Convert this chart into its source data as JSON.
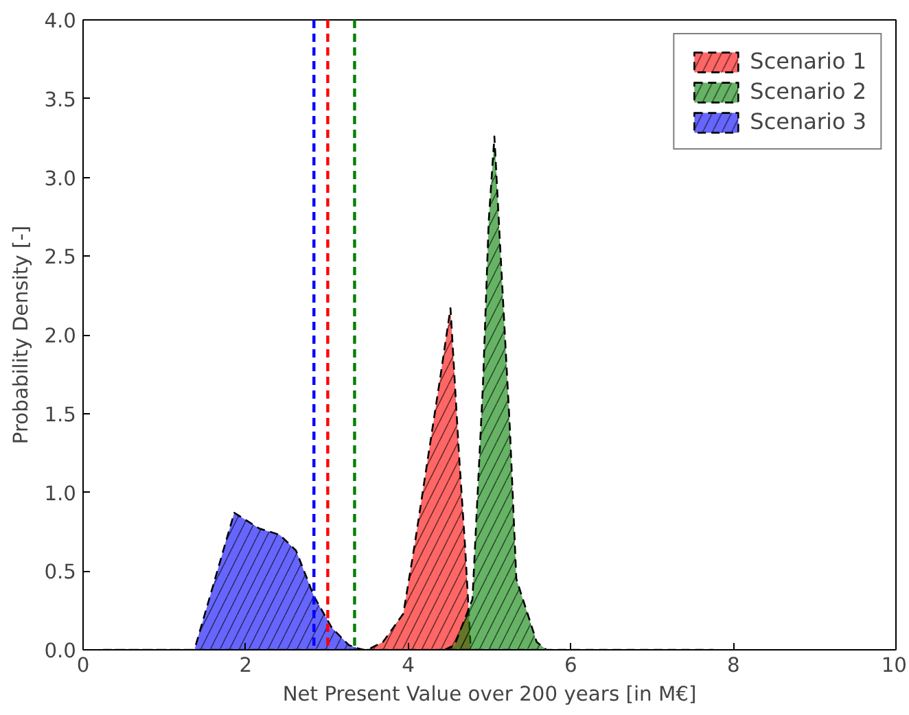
{
  "chart_data": {
    "type": "area",
    "xlabel": "Net Present Value over 200 years [in M€]",
    "ylabel": "Probability Density [-]",
    "xlim": [
      0,
      10
    ],
    "ylim": [
      0,
      4
    ],
    "xticks": [
      0,
      2,
      4,
      6,
      8,
      10
    ],
    "yticks": [
      {
        "value": 0,
        "label": "0.0"
      },
      {
        "value": 0.5,
        "label": "0.5"
      },
      {
        "value": 1,
        "label": "1.0"
      },
      {
        "value": 1.5,
        "label": "1.5"
      },
      {
        "value": 2,
        "label": "2.0"
      },
      {
        "value": 2.5,
        "label": "2.5"
      },
      {
        "value": 3,
        "label": "3.0"
      },
      {
        "value": 3.5,
        "label": "3.5"
      },
      {
        "value": 4,
        "label": "4.0"
      }
    ],
    "grid": false,
    "legend": "top right",
    "line_style": "dashed",
    "series": [
      {
        "name": "Scenario 1",
        "color": "#ff0000",
        "x": [
          3.2,
          3.5,
          3.69,
          3.94,
          4.08,
          4.4,
          4.52,
          4.62,
          4.7,
          4.77,
          4.85
        ],
        "values": [
          0,
          0,
          0.05,
          0.23,
          0.67,
          1.75,
          2.17,
          1.28,
          0.65,
          0,
          0
        ]
      },
      {
        "name": "Scenario 2",
        "color": "#008000",
        "x": [
          4.45,
          4.57,
          4.79,
          4.92,
          4.99,
          5.06,
          5.13,
          5.25,
          5.33,
          5.58,
          5.7,
          7.75
        ],
        "values": [
          0,
          0.03,
          0.32,
          1.69,
          2.72,
          3.26,
          2.57,
          1.41,
          0.45,
          0.05,
          0,
          0
        ]
      },
      {
        "name": "Scenario 3",
        "color": "#0000ff",
        "x": [
          0.25,
          1.37,
          1.86,
          2.17,
          2.42,
          2.62,
          2.84,
          3.06,
          3.27,
          3.38,
          3.45
        ],
        "values": [
          0,
          0,
          0.87,
          0.77,
          0.73,
          0.63,
          0.34,
          0.14,
          0.03,
          0.01,
          0
        ]
      }
    ],
    "ref_lines": [
      {
        "axis": "x",
        "value": 2.84,
        "color": "#0000ff",
        "line_style": "dashed"
      },
      {
        "axis": "x",
        "value": 3.01,
        "color": "#ff0000",
        "line_style": "dashed"
      },
      {
        "axis": "x",
        "value": 3.34,
        "color": "#008000",
        "line_style": "dashed"
      }
    ]
  }
}
